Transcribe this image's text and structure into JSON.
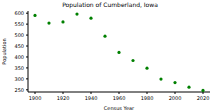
{
  "chart_data": {
    "type": "scatter",
    "title": "Population of Cumberland, Iowa",
    "x_label": "Census Year",
    "y_label": "Population",
    "x": [
      1900,
      1910,
      1920,
      1930,
      1940,
      1950,
      1960,
      1970,
      1980,
      1990,
      2000,
      2010,
      2020
    ],
    "values": [
      590,
      555,
      560,
      596,
      577,
      495,
      421,
      384,
      349,
      299,
      283,
      262,
      247
    ],
    "color": "#008000",
    "xlim": [
      1895,
      2025
    ],
    "xticks": [
      1900,
      1920,
      1940,
      1960,
      1980,
      2000,
      2020
    ],
    "ylim": [
      240,
      610
    ],
    "yticks": [
      250,
      300,
      350,
      400,
      450,
      500,
      550,
      600
    ],
    "grid": false,
    "marker": "circle"
  }
}
